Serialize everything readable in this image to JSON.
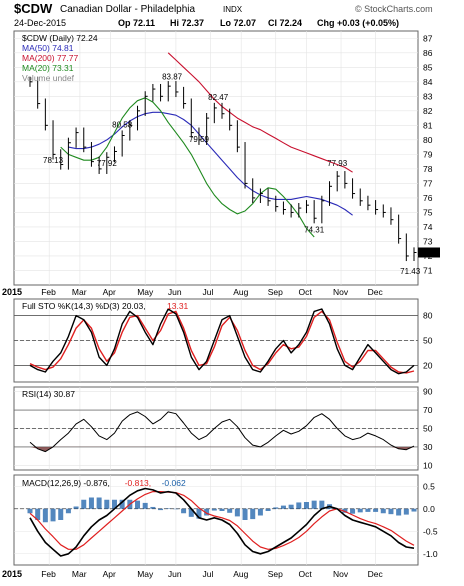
{
  "header": {
    "symbol": "$CDW",
    "name": "Canadian Dollar - Philadelphia",
    "exchange": "INDX",
    "date": "24-Dec-2015",
    "open": "Op 72.11",
    "high": "Hi 72.37",
    "low": "Lo 72.07",
    "close": "Cl 72.24",
    "change": "Chg +0.03 (+0.05%)",
    "brand": "© StockCharts.com"
  },
  "colors": {
    "price": "#000000",
    "ma50": "#2b2bb8",
    "ma200": "#c8102e",
    "ma20": "#1f8a1f",
    "signal": "#e02020",
    "histogram": "#1a5fa8",
    "rsi_fill": "#7a4040",
    "frame": "#666666"
  },
  "chart_data": [
    {
      "type": "line",
      "panel": "price",
      "legend": [
        {
          "label": "$CDW (Daily) 72.24",
          "color": "#000000"
        },
        {
          "label": "MA(50) 74.81",
          "color": "#2b2bb8"
        },
        {
          "label": "MA(200) 77.77",
          "color": "#c8102e"
        },
        {
          "label": "MA(20) 73.31",
          "color": "#1f8a1f"
        },
        {
          "label": "Volume undef",
          "color": "#888888"
        }
      ],
      "x_ticks": [
        "Feb",
        "Mar",
        "Apr",
        "May",
        "Jun",
        "Jul",
        "Aug",
        "Sep",
        "Oct",
        "Nov",
        "Dec"
      ],
      "year_label": "2015",
      "ylim": [
        70,
        87.5
      ],
      "y_ticks": [
        71,
        72,
        73,
        74,
        75,
        76,
        77,
        78,
        79,
        80,
        81,
        82,
        83,
        84,
        85,
        86,
        87
      ],
      "annotations": [
        {
          "t": 3,
          "v": 78.13,
          "label": "78.13"
        },
        {
          "t": 10,
          "v": 77.92,
          "label": "77.92"
        },
        {
          "t": 12,
          "v": 80.58,
          "label": "80.58"
        },
        {
          "t": 18.5,
          "v": 83.87,
          "label": "83.87"
        },
        {
          "t": 22,
          "v": 79.59,
          "label": "79.59"
        },
        {
          "t": 24.5,
          "v": 82.47,
          "label": "82.47"
        },
        {
          "t": 37,
          "v": 74.31,
          "label": "74.31"
        },
        {
          "t": 40,
          "v": 77.93,
          "label": "77.93"
        },
        {
          "t": 49.5,
          "v": 71.43,
          "label": "71.43"
        }
      ],
      "series": [
        {
          "name": "$CDW (Daily)",
          "key": "close",
          "values": [
            84.0,
            82.5,
            81.0,
            79.0,
            78.3,
            79.8,
            80.5,
            79.5,
            78.5,
            78.0,
            78.8,
            79.2,
            80.3,
            81.0,
            82.0,
            83.0,
            83.5,
            83.0,
            83.7,
            83.3,
            82.5,
            80.5,
            80.0,
            81.5,
            82.2,
            81.8,
            81.0,
            79.5,
            77.0,
            76.0,
            76.3,
            75.8,
            75.4,
            75.2,
            75.0,
            75.3,
            75.5,
            74.6,
            75.8,
            76.8,
            77.5,
            77.0,
            76.3,
            75.8,
            75.5,
            75.2,
            75.0,
            74.5,
            73.2,
            72.0,
            72.24
          ]
        },
        {
          "name": "MA(50)",
          "key": "ma50",
          "values": [
            null,
            null,
            null,
            null,
            null,
            79.5,
            79.4,
            79.4,
            79.5,
            79.7,
            80.0,
            80.4,
            80.9,
            81.3,
            81.6,
            81.8,
            81.9,
            81.9,
            81.8,
            81.7,
            81.4,
            81.0,
            80.4,
            79.8,
            79.2,
            78.6,
            78.0,
            77.4,
            76.9,
            76.5,
            76.2,
            76.0,
            75.9,
            75.9,
            75.9,
            76.0,
            76.1,
            76.0,
            75.9,
            75.7,
            75.5,
            75.2,
            74.81
          ]
        },
        {
          "name": "MA(200)",
          "key": "ma200",
          "values": [
            null,
            null,
            null,
            null,
            null,
            null,
            null,
            null,
            null,
            null,
            null,
            null,
            null,
            null,
            null,
            null,
            null,
            null,
            86.0,
            85.5,
            85.0,
            84.5,
            84.0,
            83.4,
            82.8,
            82.3,
            81.9,
            81.5,
            81.2,
            80.9,
            80.7,
            80.4,
            80.1,
            79.8,
            79.5,
            79.3,
            79.1,
            78.9,
            78.7,
            78.5,
            78.3,
            78.1,
            77.77
          ]
        },
        {
          "name": "MA(20)",
          "key": "ma20",
          "values": [
            null,
            null,
            null,
            null,
            79.5,
            79.0,
            78.8,
            78.6,
            78.6,
            78.8,
            79.5,
            80.5,
            81.5,
            82.2,
            82.7,
            82.9,
            82.6,
            82.0,
            81.2,
            80.5,
            79.8,
            79.0,
            78.0,
            77.0,
            76.2,
            75.6,
            75.2,
            74.9,
            75.1,
            75.6,
            76.3,
            76.7,
            76.6,
            76.1,
            75.5,
            74.8,
            73.9,
            73.31
          ]
        }
      ]
    },
    {
      "type": "line",
      "panel": "stochastic",
      "legend": [
        {
          "label": "Full STO %K(14,3) %D(3) 20.03,",
          "color": "#000000"
        },
        {
          "label": "13.31",
          "color": "#e02020"
        }
      ],
      "ylim": [
        0,
        100
      ],
      "y_ticks": [
        20,
        50,
        80
      ],
      "series": [
        {
          "name": "%K",
          "key": "k",
          "values": [
            20,
            15,
            12,
            25,
            35,
            55,
            80,
            75,
            60,
            30,
            20,
            40,
            70,
            85,
            78,
            60,
            45,
            70,
            88,
            82,
            60,
            30,
            15,
            25,
            50,
            75,
            80,
            55,
            30,
            15,
            12,
            25,
            40,
            50,
            35,
            45,
            60,
            85,
            88,
            70,
            40,
            20,
            15,
            30,
            45,
            35,
            25,
            15,
            10,
            12,
            20.03
          ]
        },
        {
          "name": "%D",
          "key": "d",
          "values": [
            22,
            18,
            15,
            18,
            28,
            45,
            65,
            75,
            65,
            40,
            25,
            35,
            60,
            78,
            80,
            65,
            50,
            62,
            82,
            85,
            65,
            38,
            20,
            22,
            42,
            68,
            78,
            62,
            38,
            20,
            15,
            22,
            35,
            45,
            40,
            42,
            55,
            78,
            85,
            75,
            48,
            25,
            18,
            25,
            38,
            38,
            28,
            18,
            12,
            11,
            13.31
          ]
        }
      ]
    },
    {
      "type": "line",
      "panel": "rsi",
      "legend": [
        {
          "label": "RSI(14) 30.87",
          "color": "#000000"
        }
      ],
      "ylim": [
        5,
        95
      ],
      "y_ticks": [
        10,
        30,
        50,
        70,
        90
      ],
      "series": [
        {
          "name": "RSI(14)",
          "key": "rsi",
          "values": [
            35,
            28,
            25,
            30,
            38,
            45,
            55,
            60,
            52,
            42,
            38,
            45,
            58,
            65,
            68,
            63,
            55,
            60,
            68,
            66,
            56,
            45,
            38,
            42,
            50,
            57,
            60,
            52,
            40,
            32,
            30,
            35,
            42,
            48,
            44,
            47,
            53,
            62,
            66,
            60,
            50,
            42,
            38,
            40,
            45,
            42,
            38,
            32,
            28,
            27,
            30.87
          ]
        }
      ]
    },
    {
      "type": "line",
      "panel": "macd",
      "legend": [
        {
          "label": "MACD(12,26,9) -0.876,",
          "color": "#000000"
        },
        {
          "label": "-0.813,",
          "color": "#e02020"
        },
        {
          "label": "-0.062",
          "color": "#1a5fa8"
        }
      ],
      "x_ticks": [
        "Feb",
        "Mar",
        "Apr",
        "May",
        "Jun",
        "Jul",
        "Aug",
        "Sep",
        "Oct",
        "Nov",
        "Dec"
      ],
      "year_label": "2015",
      "ylim": [
        -1.25,
        0.75
      ],
      "y_ticks": [
        0.5,
        0.0,
        -0.5,
        -1.0
      ],
      "series": [
        {
          "name": "MACD",
          "key": "macd",
          "values": [
            -0.2,
            -0.5,
            -0.75,
            -0.9,
            -1.05,
            -1.0,
            -0.85,
            -0.6,
            -0.4,
            -0.25,
            -0.15,
            0.0,
            0.15,
            0.3,
            0.4,
            0.45,
            0.42,
            0.35,
            0.38,
            0.35,
            0.2,
            0.0,
            -0.2,
            -0.25,
            -0.2,
            -0.25,
            -0.35,
            -0.55,
            -0.8,
            -0.95,
            -1.0,
            -0.95,
            -0.85,
            -0.75,
            -0.65,
            -0.5,
            -0.35,
            -0.15,
            0.0,
            0.05,
            0.0,
            -0.15,
            -0.25,
            -0.3,
            -0.35,
            -0.4,
            -0.5,
            -0.6,
            -0.75,
            -0.85,
            -0.876
          ]
        },
        {
          "name": "Signal",
          "key": "signal",
          "values": [
            -0.1,
            -0.25,
            -0.45,
            -0.62,
            -0.8,
            -0.9,
            -0.9,
            -0.8,
            -0.65,
            -0.5,
            -0.35,
            -0.2,
            -0.05,
            0.1,
            0.22,
            0.32,
            0.38,
            0.38,
            0.37,
            0.36,
            0.3,
            0.18,
            0.02,
            -0.1,
            -0.16,
            -0.2,
            -0.26,
            -0.38,
            -0.55,
            -0.72,
            -0.85,
            -0.9,
            -0.88,
            -0.82,
            -0.74,
            -0.64,
            -0.5,
            -0.33,
            -0.18,
            -0.05,
            0.0,
            -0.06,
            -0.14,
            -0.22,
            -0.28,
            -0.33,
            -0.4,
            -0.48,
            -0.6,
            -0.72,
            -0.813
          ]
        },
        {
          "name": "Histogram",
          "key": "hist",
          "values": [
            -0.1,
            -0.25,
            -0.3,
            -0.28,
            -0.25,
            -0.1,
            0.05,
            0.2,
            0.25,
            0.25,
            0.2,
            0.2,
            0.2,
            0.2,
            0.18,
            0.13,
            0.04,
            -0.03,
            0.01,
            -0.01,
            -0.1,
            -0.18,
            -0.22,
            -0.15,
            -0.04,
            -0.05,
            -0.09,
            -0.17,
            -0.25,
            -0.23,
            -0.15,
            -0.05,
            0.03,
            0.07,
            0.09,
            0.14,
            0.15,
            0.18,
            0.18,
            0.1,
            0.0,
            -0.09,
            -0.11,
            -0.08,
            -0.07,
            -0.07,
            -0.1,
            -0.12,
            -0.15,
            -0.13,
            -0.062
          ]
        }
      ]
    }
  ]
}
